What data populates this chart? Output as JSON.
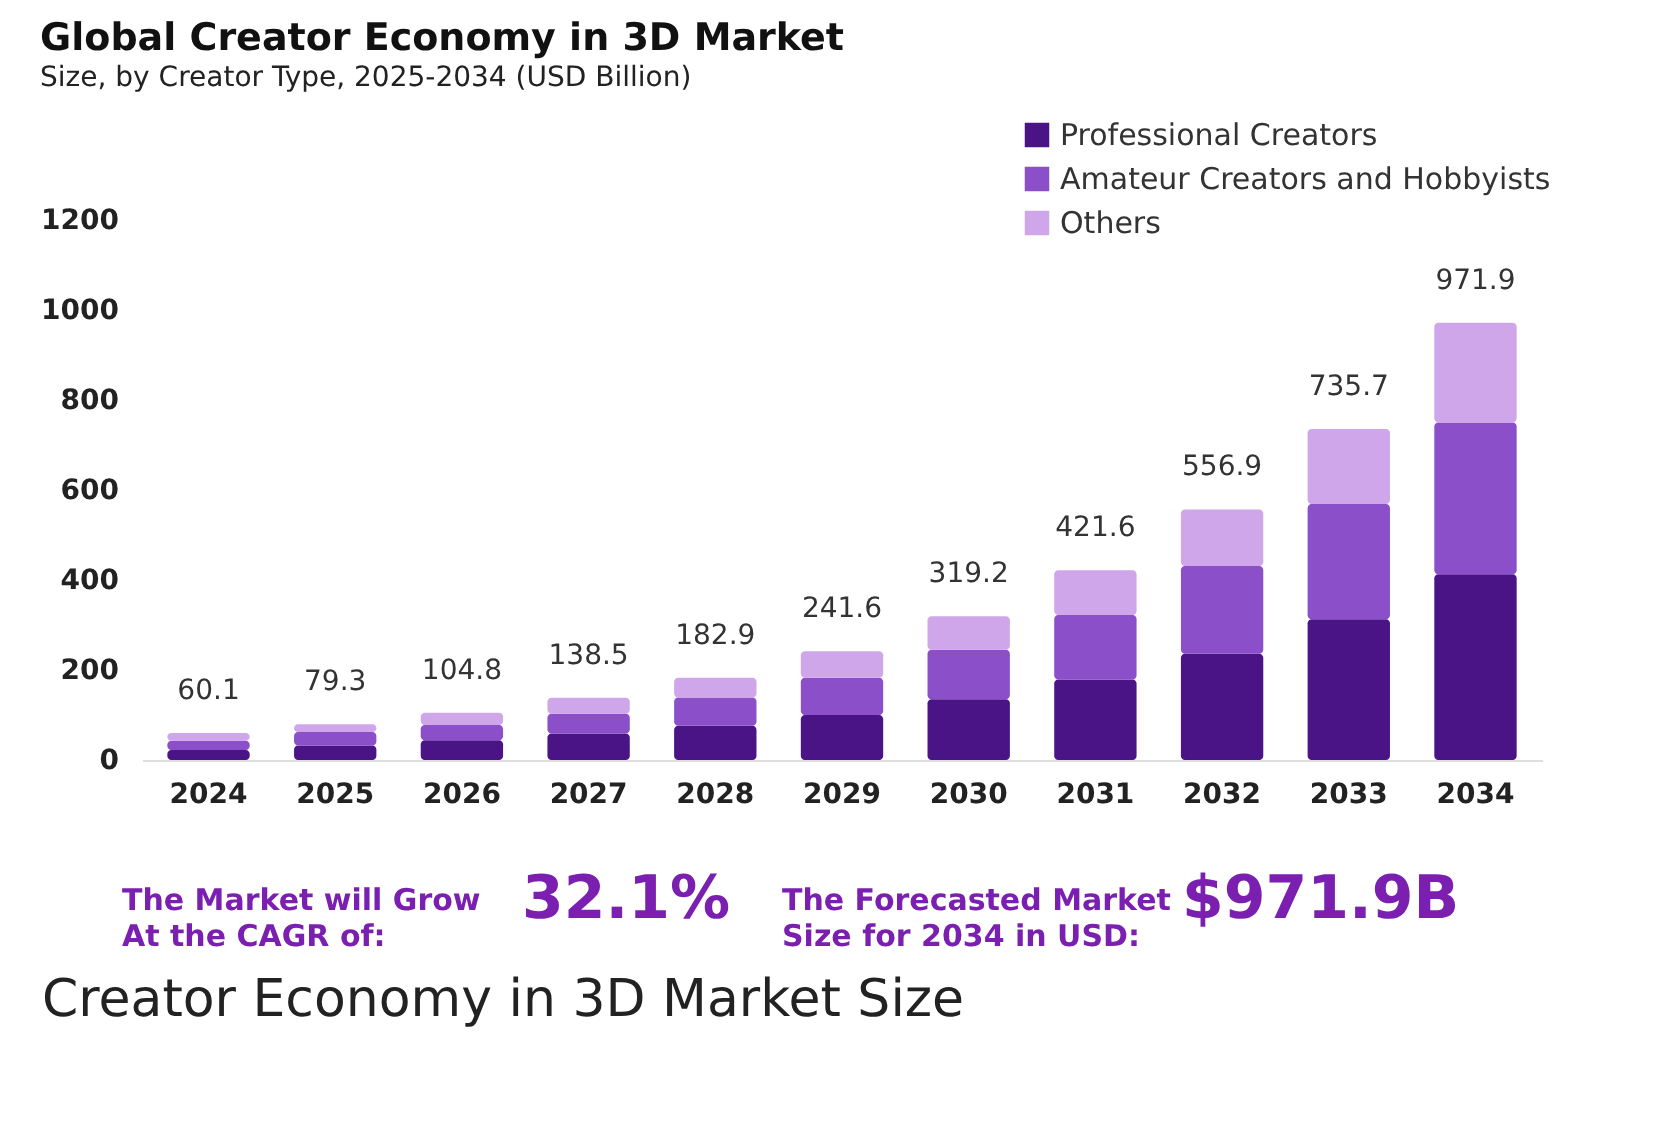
{
  "chart_data": {
    "type": "bar",
    "stacked": true,
    "title": "Global Creator Economy in 3D Market",
    "subtitle": "Size, by Creator Type, 2025-2034 (USD Billion)",
    "categories": [
      "2024",
      "2025",
      "2026",
      "2027",
      "2028",
      "2029",
      "2030",
      "2031",
      "2032",
      "2033",
      "2034"
    ],
    "series": [
      {
        "name": "Professional Creators",
        "color": "#4a1486",
        "values": [
          22,
          32,
          44,
          59,
          76,
          100,
          135,
          179,
          236,
          313,
          413
        ]
      },
      {
        "name": "Amateur Creators and Hobbyists",
        "color": "#8b4fc9",
        "values": [
          21,
          30,
          34,
          44,
          63,
          83,
          110,
          143,
          195,
          256,
          337
        ]
      },
      {
        "name": "Others",
        "color": "#d0a6ea",
        "values": [
          17.1,
          17.3,
          26.8,
          35.5,
          43.9,
          58.6,
          74.2,
          99.6,
          125.9,
          166.7,
          221.9
        ]
      }
    ],
    "totals": [
      "60.1",
      "79.3",
      "104.8",
      "138.5",
      "182.9",
      "241.6",
      "319.2",
      "421.6",
      "556.9",
      "735.7",
      "971.9"
    ],
    "ylim": [
      0,
      1200
    ],
    "yticks": [
      0,
      200,
      400,
      600,
      800,
      1000,
      1200
    ],
    "grid": false,
    "legend": "top right",
    "annotations": [
      "The Market will Grow At the CAGR of:",
      "32.1%",
      "The Forecasted Market Size for 2034 in USD:",
      "$971.9B",
      "Creator Economy in 3D Market Size"
    ]
  }
}
